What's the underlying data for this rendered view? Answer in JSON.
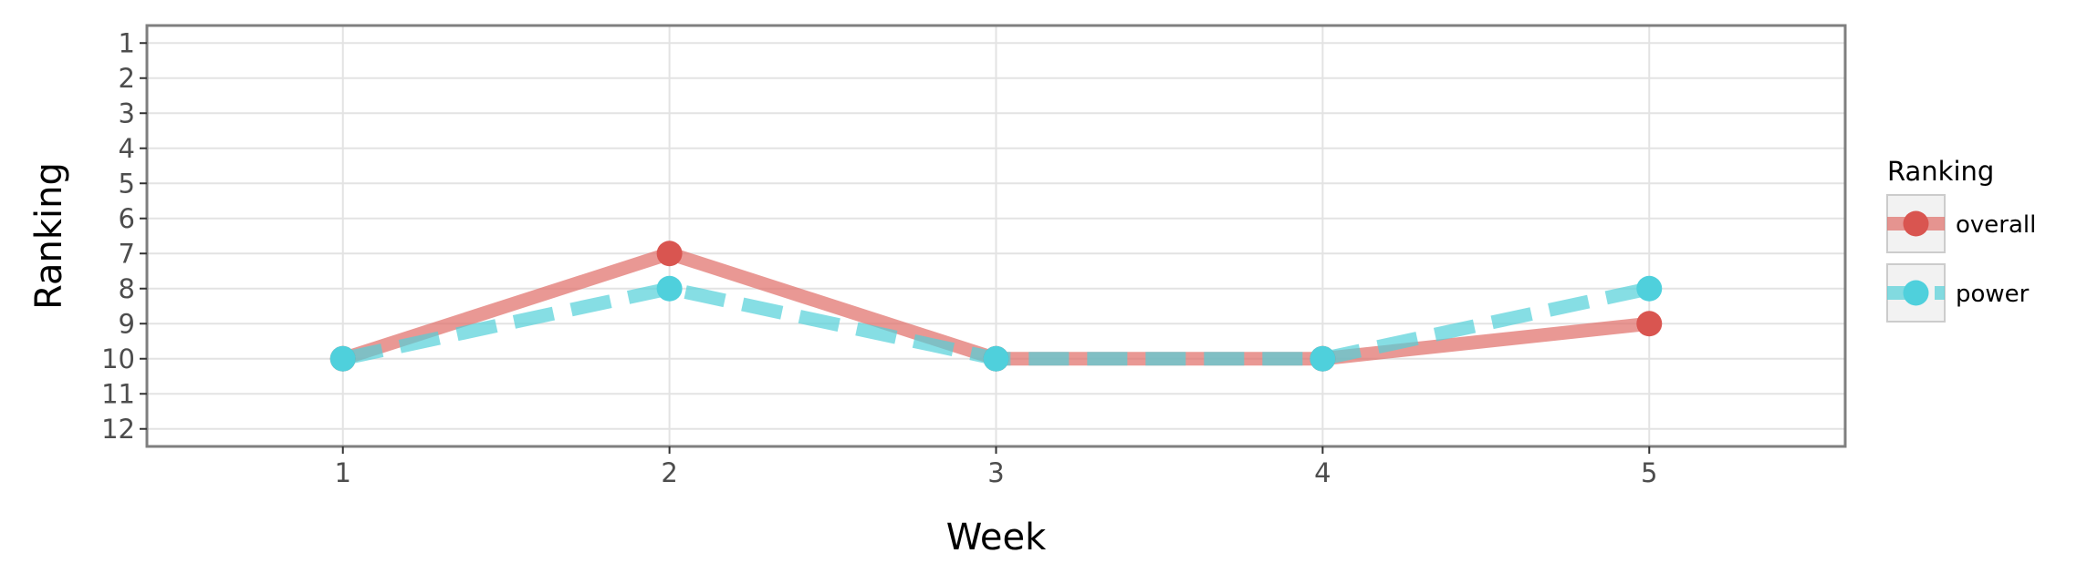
{
  "chart_data": {
    "type": "line",
    "xlabel": "Week",
    "ylabel": "Ranking",
    "x": [
      1,
      2,
      3,
      4,
      5
    ],
    "xlim": [
      0.4,
      5.6
    ],
    "ylim": [
      12.5,
      0.5
    ],
    "y_reversed": true,
    "x_ticks": [
      1,
      2,
      3,
      4,
      5
    ],
    "y_ticks": [
      1,
      2,
      3,
      4,
      5,
      6,
      7,
      8,
      9,
      10,
      11,
      12
    ],
    "grid": true,
    "legend": {
      "title": "Ranking",
      "position": "right"
    },
    "series": [
      {
        "name": "overall",
        "values": [
          10,
          7,
          10,
          10,
          9
        ],
        "color": "#e06c66",
        "point_color": "#d95550",
        "linestyle": "solid"
      },
      {
        "name": "power",
        "values": [
          10,
          8,
          10,
          10,
          8
        ],
        "color": "#52d0d9",
        "point_color": "#4fd0dc",
        "linestyle": "dashed"
      }
    ]
  }
}
